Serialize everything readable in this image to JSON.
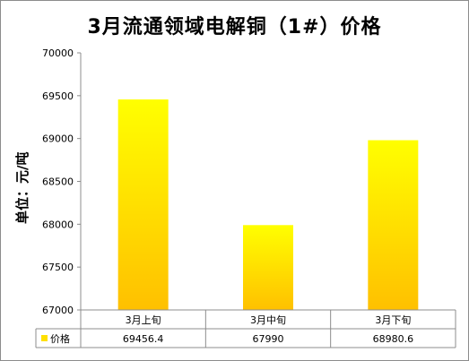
{
  "chart_data": {
    "type": "bar",
    "title": "3月流通领域电解铜（1#）价格",
    "ylabel": "单位：元/吨",
    "xlabel": "",
    "categories": [
      "3月上旬",
      "3月中旬",
      "3月下旬"
    ],
    "series": [
      {
        "name": "价格",
        "values": [
          69456.4,
          67990,
          68980.6
        ]
      }
    ],
    "value_labels": [
      "69456.4",
      "67990",
      "68980.6"
    ],
    "ylim": [
      67000,
      70000
    ],
    "yticks": [
      67000,
      67500,
      68000,
      68500,
      69000,
      69500,
      70000
    ],
    "grid": false,
    "legend": "data-table",
    "colors": {
      "bar_top": "#ffff00",
      "bar_bottom": "#ffc000",
      "legend_key": "#ffe000"
    }
  }
}
